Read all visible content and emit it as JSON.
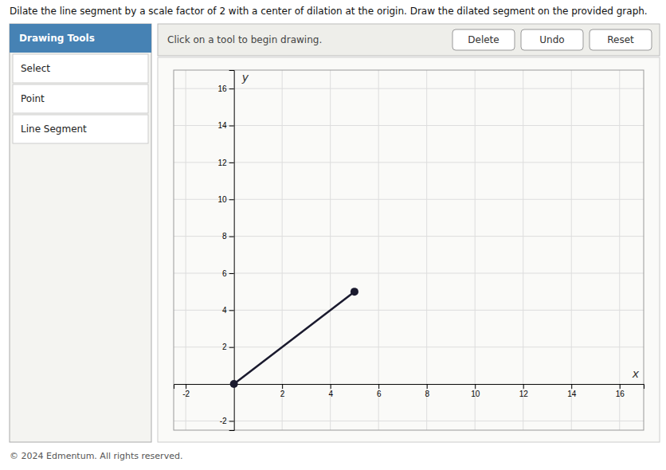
{
  "chart_data": {
    "type": "line",
    "title": "Dilate the line segment by a scale factor of 2 with a center of dilation at the origin. Draw the dilated segment on the provided graph.",
    "x": [
      0,
      5
    ],
    "values": [
      0,
      5
    ],
    "color": "#1a1a2e",
    "marker": "circle",
    "xlabel": "x",
    "ylabel": "y",
    "xlim": [
      -2.5,
      17
    ],
    "ylim": [
      -2.5,
      17
    ],
    "xticks": [
      -2,
      2,
      4,
      6,
      8,
      10,
      12,
      14,
      16
    ],
    "yticks": [
      -2,
      2,
      4,
      6,
      8,
      10,
      12,
      14,
      16
    ],
    "grid": true,
    "annotations": [
      "Drawing Tools",
      "Select",
      "Point",
      "Line Segment",
      "Click on a tool to begin drawing.",
      "Delete",
      "Undo",
      "Reset",
      "© 2024 Edmentum. All rights reserved."
    ]
  }
}
